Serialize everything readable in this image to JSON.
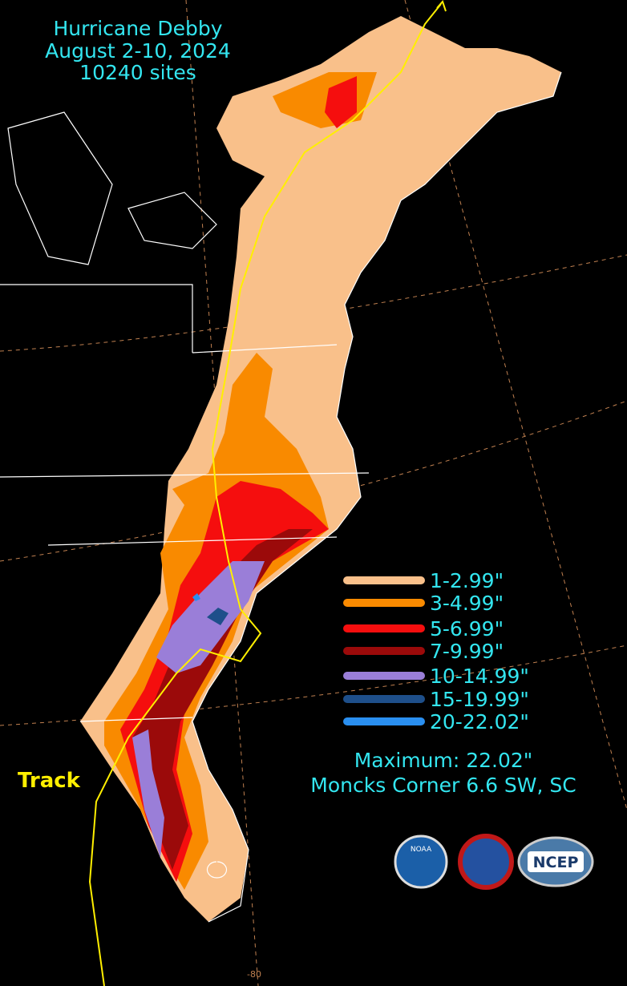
{
  "title": [
    "Hurricane Debby",
    "August 2-10, 2024",
    "10240 sites"
  ],
  "legend": [
    {
      "label": "1-2.99\"",
      "color": "#f9c08a"
    },
    {
      "label": "3-4.99\"",
      "color": "#f98a00"
    },
    {
      "label": "5-6.99\"",
      "color": "#f50e0e"
    },
    {
      "label": "7-9.99\"",
      "color": "#9b0a0a"
    },
    {
      "label": "10-14.99\"",
      "color": "#9a7ed8"
    },
    {
      "label": "15-19.99\"",
      "color": "#1e4f8a"
    },
    {
      "label": "20-22.02\"",
      "color": "#2a8ff0"
    }
  ],
  "maximum": [
    "Maximum:  22.02\"",
    "Moncks Corner 6.6 SW, SC"
  ],
  "track_label": "Track",
  "grid_label": "-80",
  "logos": [
    "NOAA",
    "NCEP"
  ]
}
